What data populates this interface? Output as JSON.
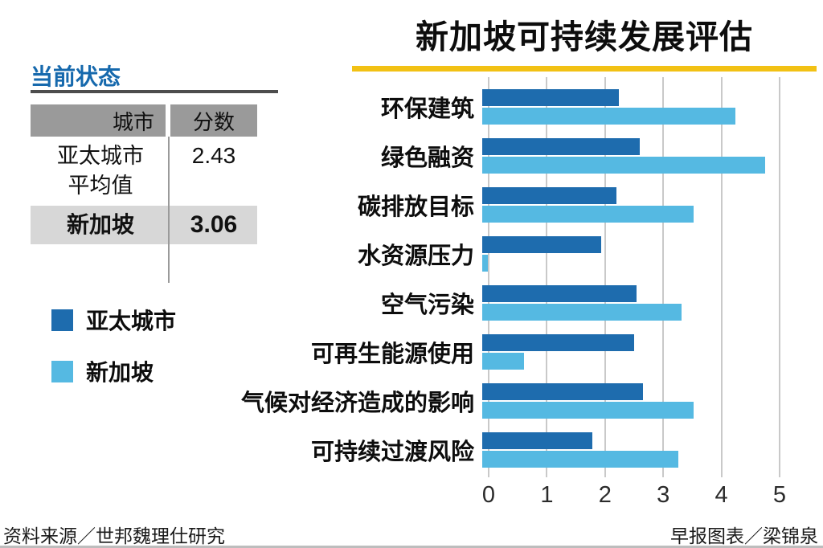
{
  "title": "新加坡可持续发展评估",
  "panel": {
    "heading": "当前状态",
    "table": {
      "headers": [
        "城市",
        "分数"
      ],
      "rows": [
        {
          "city": "亚太城市\n平均值",
          "score": "2.43",
          "highlight": false
        },
        {
          "city": "新加坡",
          "score": "3.06",
          "highlight": true
        }
      ]
    },
    "legend": [
      {
        "label": "亚太城市",
        "color": "#1e6cae"
      },
      {
        "label": "新加坡",
        "color": "#55b9e2"
      }
    ]
  },
  "chart_data": {
    "type": "bar",
    "orientation": "horizontal",
    "title": "新加坡可持续发展评估",
    "categories": [
      "环保建筑",
      "绿色融资",
      "碳排放目标",
      "水资源压力",
      "空气污染",
      "可再生能源使用",
      "气候对经济造成的影响",
      "可持续过渡风险"
    ],
    "series": [
      {
        "name": "亚太城市",
        "color": "#1e6cae",
        "values": [
          2.3,
          2.65,
          2.25,
          2.0,
          2.6,
          2.55,
          2.7,
          1.85
        ]
      },
      {
        "name": "新加坡",
        "color": "#55b9e2",
        "values": [
          4.25,
          4.75,
          3.55,
          0.1,
          3.35,
          0.7,
          3.55,
          3.3
        ]
      }
    ],
    "xlim": [
      0,
      5
    ],
    "xticks": [
      0,
      1,
      2,
      3,
      4,
      5
    ],
    "grid": true,
    "legend_position": "left"
  },
  "footer": {
    "source": "资料来源／世邦魏理仕研究",
    "credit": "早报图表／梁锦泉"
  }
}
